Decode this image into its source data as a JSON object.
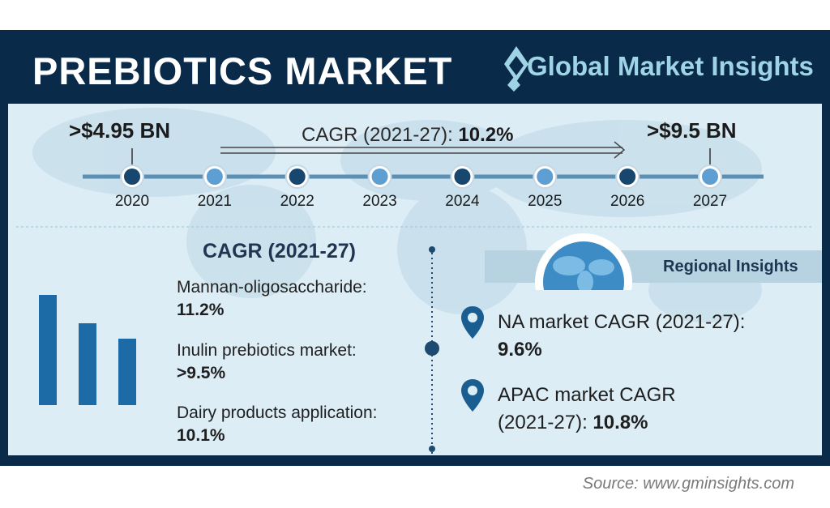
{
  "header": {
    "title": "PREBIOTICS MARKET",
    "brand": "Global Market Insights"
  },
  "timeline": {
    "start_value": ">$4.95 BN",
    "end_value": ">$9.5 BN",
    "cagr_label": "CAGR (2021-27):",
    "cagr_value": "10.2%",
    "years": [
      "2020",
      "2021",
      "2022",
      "2023",
      "2024",
      "2025",
      "2026",
      "2027"
    ]
  },
  "segments": {
    "title": "CAGR (2021-27)",
    "items": [
      {
        "label": "Mannan-oligosaccharide:",
        "value": "11.2%"
      },
      {
        "label": "Inulin prebiotics market:",
        "value": ">9.5%"
      },
      {
        "label": "Dairy products application:",
        "value": "10.1%"
      }
    ]
  },
  "regional": {
    "title": "Regional Insights",
    "items": [
      {
        "line1": "NA market CAGR (2021-27):",
        "line2": "",
        "value": "9.6%"
      },
      {
        "line1": "APAC market CAGR",
        "line2": "(2021-27):",
        "value": "10.8%"
      }
    ]
  },
  "footer": {
    "source": "Source: www.gminsights.com"
  },
  "chart_data": {
    "type": "line",
    "x": [
      "2020",
      "2021",
      "2022",
      "2023",
      "2024",
      "2025",
      "2026",
      "2027"
    ],
    "annotations": [
      {
        "x": "2020",
        "label": ">$4.95 BN"
      },
      {
        "x": "2027",
        "label": ">$9.5 BN"
      }
    ],
    "cagr": "10.2%",
    "title": "PREBIOTICS MARKET"
  },
  "colors": {
    "navy": "#0a2a4a",
    "dark_dot": "#17476e",
    "light_dot": "#5d9fd2",
    "bar": "#1c6aa6",
    "panel": "#dcedf6"
  }
}
